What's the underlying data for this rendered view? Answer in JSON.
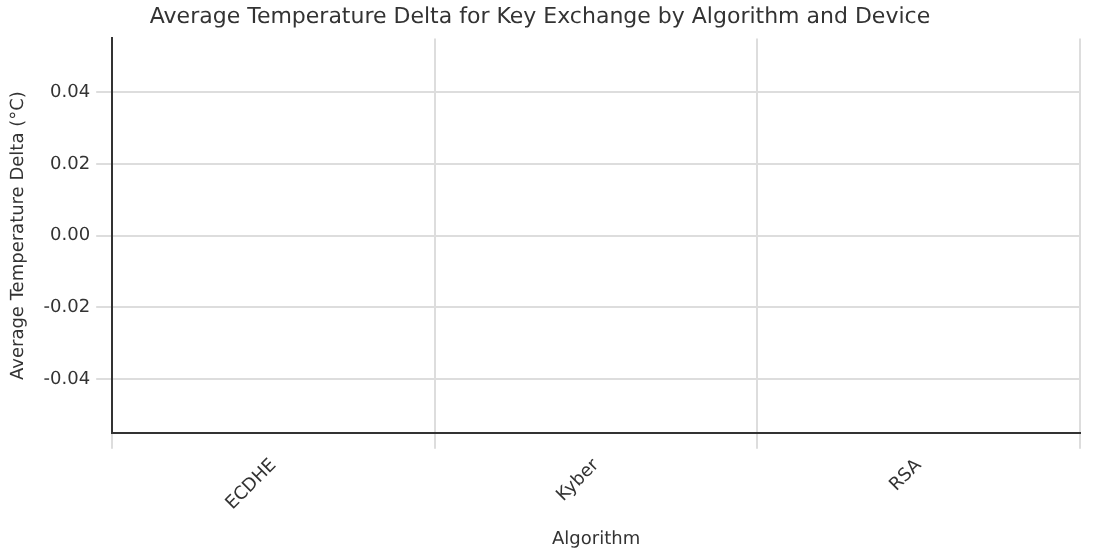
{
  "chart_data": {
    "type": "bar",
    "title": "Average Temperature Delta for Key Exchange by Algorithm and Device",
    "xlabel": "Algorithm",
    "ylabel": "Average Temperature Delta (°C)",
    "categories": [
      "ECDHE",
      "Kyber",
      "RSA"
    ],
    "series": [
      {
        "values": [
          0,
          0,
          0
        ]
      },
      {
        "values": [
          0,
          0,
          0
        ]
      }
    ],
    "ylim": [
      -0.055,
      0.055
    ],
    "yticks": [
      {
        "value": -0.04,
        "label": "-0.04"
      },
      {
        "value": -0.02,
        "label": "-0.02"
      },
      {
        "value": 0,
        "label": "0.00"
      },
      {
        "value": 0.02,
        "label": "0.02"
      },
      {
        "value": 0.04,
        "label": "0.04"
      }
    ],
    "grid": true
  }
}
